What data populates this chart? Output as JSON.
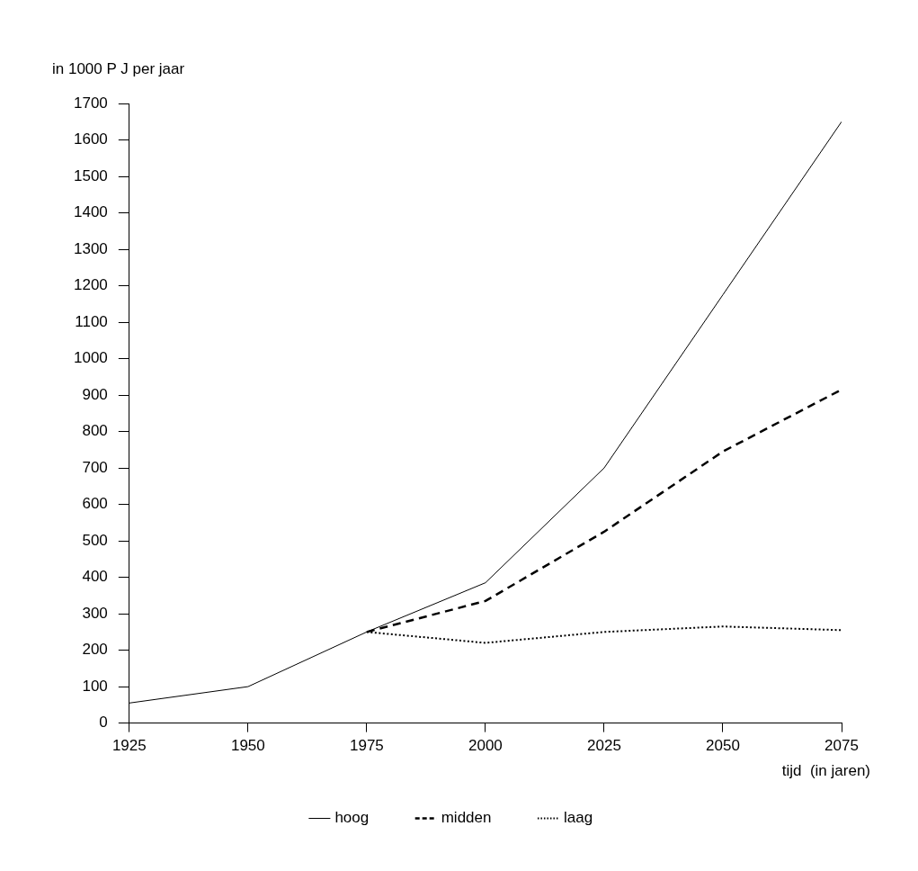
{
  "chart_data": {
    "type": "line",
    "ylabel": "in 1000 P J per jaar",
    "xlabel": "tijd  (in jaren)",
    "x": [
      1925,
      1950,
      1975,
      2000,
      2025,
      2050,
      2075
    ],
    "xlim": [
      1925,
      2075
    ],
    "xticks": [
      1925,
      1950,
      1975,
      2000,
      2025,
      2050,
      2075
    ],
    "ylim": [
      0,
      1700
    ],
    "yticks": [
      0,
      100,
      200,
      300,
      400,
      500,
      600,
      700,
      800,
      900,
      1000,
      1100,
      1200,
      1300,
      1400,
      1500,
      1600,
      1700
    ],
    "grid": false,
    "legend": "bottom",
    "marker": "none",
    "series": [
      {
        "name": "hoog",
        "color": "#000000",
        "line_style": "solid",
        "values": [
          55,
          100,
          250,
          385,
          700,
          1175,
          1650
        ]
      },
      {
        "name": "midden",
        "color": "#000000",
        "line_style": "dashed",
        "values": [
          null,
          null,
          250,
          335,
          525,
          745,
          915
        ]
      },
      {
        "name": "laag",
        "color": "#000000",
        "line_style": "dotted",
        "values": [
          null,
          null,
          250,
          220,
          250,
          265,
          255
        ]
      }
    ]
  }
}
